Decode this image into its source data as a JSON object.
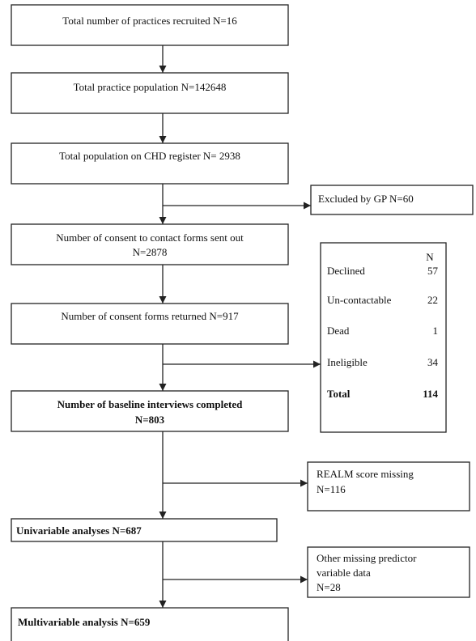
{
  "flow": {
    "recruited": "Total number of practices recruited N=16",
    "population": "Total practice population N=142648",
    "chd_register": "Total population on CHD register N= 2938",
    "consent_sent_line1": "Number of consent to contact forms sent out",
    "consent_sent_line2": "N=2878",
    "consent_returned": "Number of consent forms returned N=917",
    "baseline_line1": "Number of baseline interviews completed",
    "baseline_line2": "N=803",
    "univariable": "Univariable analyses N=687",
    "multivariable": "Multivariable analysis N=659"
  },
  "side": {
    "excluded_gp": "Excluded by GP N=60",
    "realm_line1": "REALM score missing",
    "realm_line2": "N=116",
    "other_line1": "Other missing predictor",
    "other_line2": "variable data",
    "other_line3": "N=28"
  },
  "exclusions": {
    "header_n": "N",
    "rows": [
      {
        "label": "Declined",
        "value": "57"
      },
      {
        "label": "Un-contactable",
        "value": "22"
      },
      {
        "label": "Dead",
        "value": "1"
      },
      {
        "label": "Ineligible",
        "value": "34"
      }
    ],
    "total_label": "Total",
    "total_value": "114"
  }
}
